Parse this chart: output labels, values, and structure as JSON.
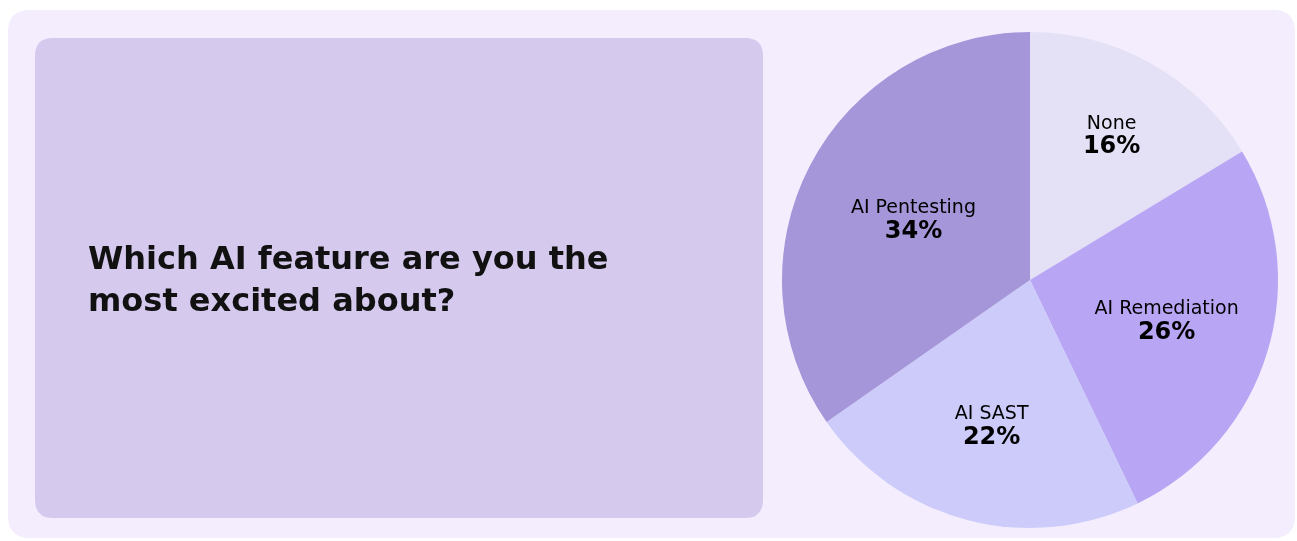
{
  "chart_data": {
    "type": "pie",
    "title": "Which AI feature are you the most excited about?",
    "categories": [
      "None",
      "AI Remediation",
      "AI SAST",
      "AI Pentesting"
    ],
    "values": [
      16,
      26,
      22,
      34
    ],
    "value_labels": [
      "16%",
      "26%",
      "22%",
      "34%"
    ],
    "colors": [
      "#e4e0f6",
      "#b8a6f5",
      "#cccbfa",
      "#a596d9"
    ],
    "legend": false
  }
}
